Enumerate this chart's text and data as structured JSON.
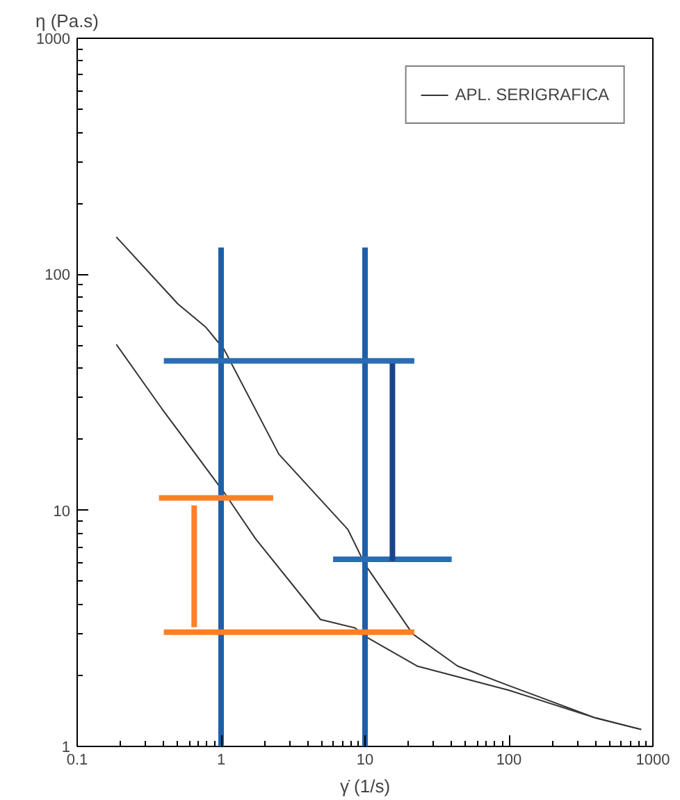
{
  "chart_data": {
    "type": "line",
    "xlabel": "γ̇ (1/s)",
    "ylabel": "η (Pa.s)",
    "log": "xy",
    "xlim": [
      0.1,
      1000
    ],
    "ylim": [
      1,
      1000
    ],
    "xticks": [
      0.1,
      1,
      10,
      100,
      1000
    ],
    "yticks": [
      1,
      10,
      100,
      1000
    ],
    "grid": false,
    "legend": "top right",
    "line_style": "solid",
    "series": [
      {
        "name": "APL. SERIGRAFICA",
        "color": "#333333",
        "x": [
          0.187,
          0.5,
          0.785,
          1.05,
          2.52,
          7.6,
          10,
          21.4,
          44,
          100,
          400,
          830
        ],
        "values": [
          144,
          75,
          59.6,
          48,
          17.3,
          8.3,
          5.9,
          3.0,
          2.19,
          1.81,
          1.32,
          1.18
        ]
      },
      {
        "color": "#333333",
        "x": [
          0.187,
          0.387,
          1.05,
          1.73,
          4.9,
          8.5,
          10,
          23,
          100,
          400,
          830
        ],
        "values": [
          50.5,
          27,
          11.9,
          7.6,
          3.45,
          3.18,
          2.93,
          2.19,
          1.73,
          1.32,
          1.18
        ]
      },
      {
        "color": "#1f5fa8",
        "x": [
          1,
          1
        ],
        "values": [
          130,
          1
        ]
      },
      {
        "color": "#1f5fa8",
        "x": [
          10,
          10
        ],
        "values": [
          130,
          1
        ]
      },
      {
        "color": "#2a6db5",
        "x": [
          0.4,
          22
        ],
        "values": [
          43,
          43
        ]
      },
      {
        "color": "#2a6db5",
        "x": [
          6,
          40
        ],
        "values": [
          6.2,
          6.2
        ]
      },
      {
        "color": "#ff7f27",
        "x": [
          0.37,
          2.3
        ],
        "values": [
          11.3,
          11.3
        ]
      },
      {
        "color": "#ff7f27",
        "x": [
          0.4,
          22
        ],
        "values": [
          3.05,
          3.05
        ]
      },
      {
        "color": "#ff7f27",
        "x": [
          0.65,
          0.65
        ],
        "values": [
          10.5,
          3.2
        ]
      },
      {
        "color": "#1a4390",
        "x": [
          15.5,
          15.5
        ],
        "values": [
          42,
          6.1
        ]
      }
    ]
  }
}
